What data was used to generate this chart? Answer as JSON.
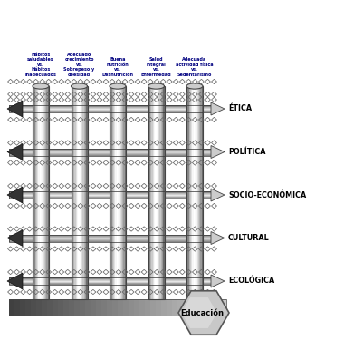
{
  "col_labels": [
    "Hábitos\nsaludables\nvs.\nHábitos\ninadecuados",
    "Adecuado\ncrecimiento\nvs.\nSobrepeso y\nobesidad",
    "Buena\nnutrición\nvs.\nDesnutrición",
    "Salud\nintegral\nvs.\nEnfermedad",
    "Adecuada\nactividad física\nvs.\nSedentarismo"
  ],
  "row_labels": [
    "ÉTICA",
    "POLÍTICA",
    "SOCIO-ECONÓMICA",
    "CULTURAL",
    "ECOLÓGICA"
  ],
  "edu_label": "Educación",
  "bg_color": "#ffffff",
  "label_color": "#000080",
  "row_label_color": "#000000",
  "n_cols": 5,
  "n_rows": 5
}
